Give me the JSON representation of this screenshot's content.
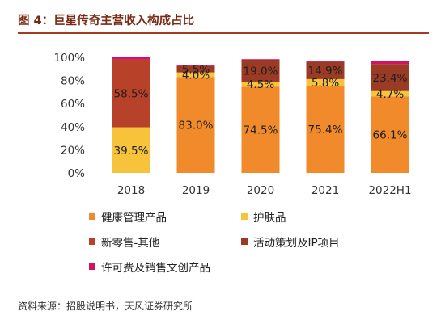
{
  "header": {
    "title": "图 4：巨星传奇主营收入构成占比"
  },
  "footer": {
    "source": "资料来源：招股说明书，天风证券研究所"
  },
  "colors": {
    "health": "#f08a2a",
    "skincare": "#f7c33b",
    "retail": "#b8412a",
    "events": "#9b3a25",
    "license": "#d2135f",
    "title": "#7a2a14",
    "rule": "#a63b1e"
  },
  "chart_data": {
    "type": "bar",
    "stacked": true,
    "percent": true,
    "categories": [
      "2018",
      "2019",
      "2020",
      "2021",
      "2022H1"
    ],
    "y_ticks": [
      "0%",
      "20%",
      "40%",
      "60%",
      "80%",
      "100%"
    ],
    "ylim": [
      0,
      100
    ],
    "legend_position": "bottom",
    "series": [
      {
        "name": "健康管理产品",
        "color_key": "health",
        "values": [
          0,
          83.0,
          74.5,
          75.4,
          66.1
        ],
        "labels": [
          "",
          "83.0%",
          "74.5%",
          "75.4%",
          "66.1%"
        ]
      },
      {
        "name": "护肤品",
        "color_key": "skincare",
        "values": [
          39.5,
          4.0,
          4.5,
          5.8,
          4.7
        ],
        "labels": [
          "39.5%",
          "4.0%",
          "4.5%",
          "5.8%",
          "4.7%"
        ]
      },
      {
        "name": "新零售-其他",
        "color_key": "retail",
        "values": [
          58.5,
          0,
          0,
          0,
          0
        ],
        "labels": [
          "58.5%",
          "",
          "",
          "",
          ""
        ]
      },
      {
        "name": "活动策划及IP项目",
        "color_key": "events",
        "values": [
          0,
          5.5,
          19.0,
          14.9,
          23.4
        ],
        "labels": [
          "",
          "5.5%",
          "19.0%",
          "14.9%",
          "23.4%"
        ]
      },
      {
        "name": "许可费及销售文创产品",
        "color_key": "license",
        "values": [
          2.0,
          0.5,
          0.5,
          0.5,
          2.5
        ],
        "labels": [
          "",
          "",
          "",
          "",
          ""
        ]
      }
    ]
  }
}
